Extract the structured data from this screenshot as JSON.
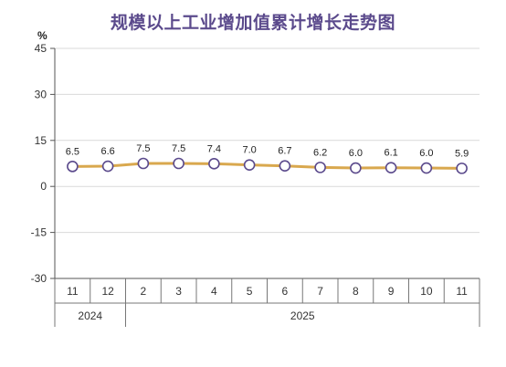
{
  "chart_data": {
    "type": "line",
    "title": "规模以上工业增加值累计增长走势图",
    "ylabel": "%",
    "categories": [
      "11",
      "12",
      "2",
      "3",
      "4",
      "5",
      "6",
      "7",
      "8",
      "9",
      "10",
      "11"
    ],
    "years": [
      {
        "label": "2024",
        "span": [
          0,
          1
        ]
      },
      {
        "label": "2025",
        "span": [
          2,
          11
        ]
      }
    ],
    "values": [
      6.5,
      6.6,
      7.5,
      7.5,
      7.4,
      7.0,
      6.7,
      6.2,
      6.0,
      6.1,
      6.0,
      5.9
    ],
    "value_labels": [
      "6.5",
      "6.6",
      "7.5",
      "7.5",
      "7.4",
      "7.0",
      "6.7",
      "6.2",
      "6.0",
      "6.1",
      "6.0",
      "5.9"
    ],
    "ylim": [
      -30,
      45
    ],
    "yticks": [
      -30,
      -15,
      0,
      15,
      30,
      45
    ],
    "ytick_labels": [
      "-30",
      "-15",
      "0",
      "15",
      "30",
      "45"
    ],
    "grid": true,
    "line_color": "#d9a84e",
    "marker_edge_color": "#5b4a8c",
    "marker_fill_color": "#ffffff",
    "title_color": "#5b4a8c"
  }
}
